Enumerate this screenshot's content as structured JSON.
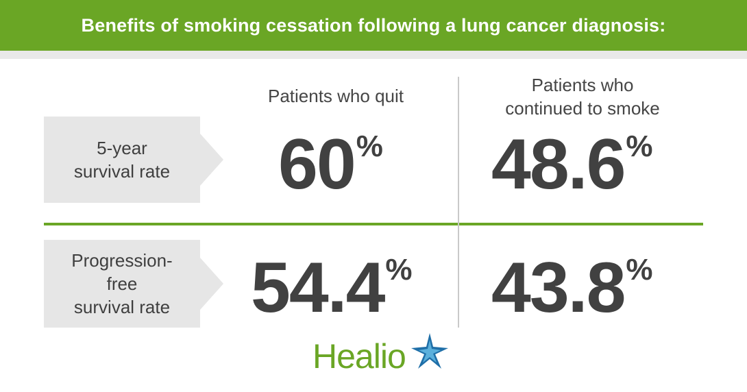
{
  "banner": {
    "title": "Benefits of smoking cessation following a lung cancer diagnosis:"
  },
  "columns": {
    "quit": "Patients who quit",
    "continued": "Patients who\ncontinued to smoke"
  },
  "rows": [
    {
      "label": "5-year\nsurvival rate",
      "quit_value": "60",
      "continued_value": "48.6",
      "unit": "%"
    },
    {
      "label": "Progression-\nfree\nsurvival rate",
      "quit_value": "54.4",
      "continued_value": "43.8",
      "unit": "%"
    }
  ],
  "logo": {
    "text": "Healio"
  },
  "colors": {
    "accent": "#6aa625",
    "text": "#414141",
    "label_bg": "#e6e6e6"
  }
}
